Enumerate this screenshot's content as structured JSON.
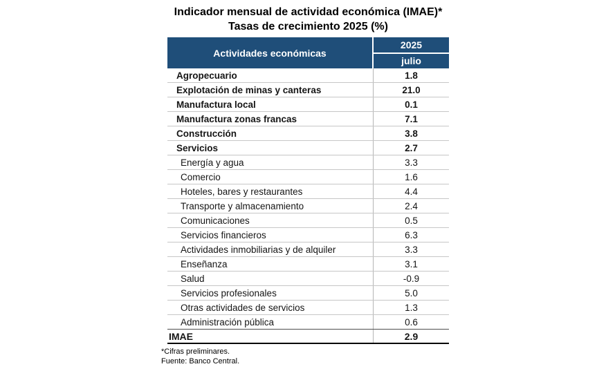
{
  "title": {
    "line1": "Indicador mensual de actividad económica (IMAE)*",
    "line2": "Tasas de crecimiento 2025 (%)"
  },
  "table": {
    "header": {
      "activities_label": "Actividades económicas",
      "year": "2025",
      "month": "julio"
    },
    "rows": [
      {
        "label": "Agropecuario",
        "value": "1.8",
        "style": "bold"
      },
      {
        "label": "Explotación de minas y canteras",
        "value": "21.0",
        "style": "bold"
      },
      {
        "label": "Manufactura local",
        "value": "0.1",
        "style": "bold"
      },
      {
        "label": "Manufactura zonas francas",
        "value": "7.1",
        "style": "bold"
      },
      {
        "label": "Construcción",
        "value": "3.8",
        "style": "bold"
      },
      {
        "label": "Servicios",
        "value": "2.7",
        "style": "bold"
      },
      {
        "label": "Energía y agua",
        "value": "3.3",
        "style": "sub"
      },
      {
        "label": "Comercio",
        "value": "1.6",
        "style": "sub"
      },
      {
        "label": "Hoteles, bares y restaurantes",
        "value": "4.4",
        "style": "sub"
      },
      {
        "label": "Transporte y almacenamiento",
        "value": "2.4",
        "style": "sub"
      },
      {
        "label": "Comunicaciones",
        "value": "0.5",
        "style": "sub"
      },
      {
        "label": "Servicios financieros",
        "value": "6.3",
        "style": "sub"
      },
      {
        "label": "Actividades inmobiliarias y de alquiler",
        "value": "3.3",
        "style": "sub"
      },
      {
        "label": "Enseñanza",
        "value": "3.1",
        "style": "sub"
      },
      {
        "label": "Salud",
        "value": "-0.9",
        "style": "sub"
      },
      {
        "label": "Servicios profesionales",
        "value": "5.0",
        "style": "sub"
      },
      {
        "label": "Otras actividades de servicios",
        "value": "1.3",
        "style": "sub"
      },
      {
        "label": "Administración pública",
        "value": "0.6",
        "style": "sub"
      },
      {
        "label": "IMAE",
        "value": "2.9",
        "style": "total"
      }
    ]
  },
  "footnotes": [
    "*Cifras preliminares.",
    "Fuente: Banco Central."
  ],
  "colors": {
    "header_bg": "#1F4E79",
    "header_text": "#FFFFFF",
    "row_separator": "#C6C6C6",
    "column_divider": "#B5B5B5",
    "total_top_border": "#4D4D4D",
    "total_bottom_border": "#000000"
  },
  "chart_data": {
    "type": "table",
    "title": "Indicador mensual de actividad económica (IMAE)*",
    "subtitle": "Tasas de crecimiento 2025 (%)",
    "columns": [
      "Actividades económicas",
      "2025 julio"
    ],
    "categories": [
      "Agropecuario",
      "Explotación de minas y canteras",
      "Manufactura local",
      "Manufactura zonas francas",
      "Construcción",
      "Servicios",
      "Energía y agua",
      "Comercio",
      "Hoteles, bares y restaurantes",
      "Transporte y almacenamiento",
      "Comunicaciones",
      "Servicios financieros",
      "Actividades inmobiliarias y de alquiler",
      "Enseñanza",
      "Salud",
      "Servicios profesionales",
      "Otras actividades de servicios",
      "Administración pública",
      "IMAE"
    ],
    "values": [
      1.8,
      21.0,
      0.1,
      7.1,
      3.8,
      2.7,
      3.3,
      1.6,
      4.4,
      2.4,
      0.5,
      6.3,
      3.3,
      3.1,
      -0.9,
      5.0,
      1.3,
      0.6,
      2.9
    ]
  }
}
